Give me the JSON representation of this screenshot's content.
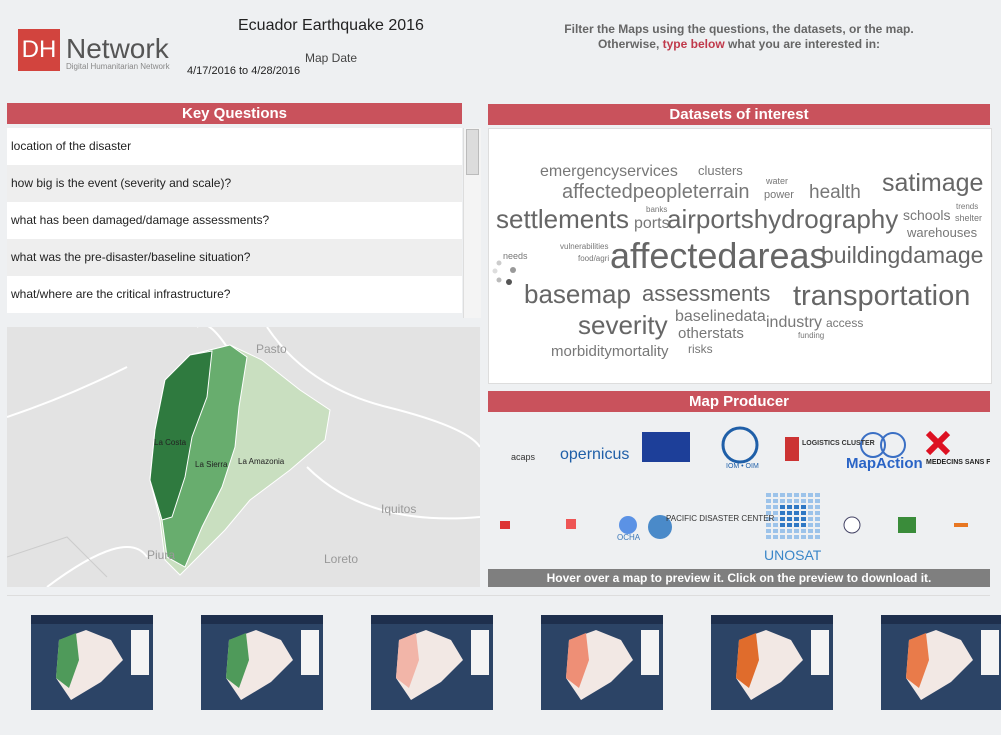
{
  "header": {
    "logo_mark": "DH",
    "logo": "Network",
    "logo_subtitle": "Digital Humanitarian Network",
    "title": "Ecuador Earthquake 2016",
    "map_date_label": "Map Date",
    "map_date": "4/17/2016 to 4/28/2016",
    "filter_line1": "Filter the Maps using the questions, the datasets, or the map.",
    "filter_line2_start": "Otherwise,",
    "filter_link": "type below",
    "filter_line2_end": "what you are interested in:"
  },
  "key_questions": {
    "title": "Key Questions",
    "items": [
      "location of the disaster",
      "how big is the event (severity and scale)?",
      "what has been damaged/damage assessments?",
      "what was the pre-disaster/baseline situation?",
      "what/where are the critical infrastructure?"
    ]
  },
  "map": {
    "labels": [
      "Pasto",
      "La Costa",
      "La Sierra",
      "La Amazonia",
      "Iquitos",
      "Piura",
      "Loreto"
    ]
  },
  "datasets": {
    "title": "Datasets of interest",
    "words": [
      "emergencyservices",
      "clusters",
      "water",
      "power",
      "affectedpeopleterrain",
      "health",
      "satimage",
      "banks",
      "settlements",
      "ports",
      "airportshydrography",
      "schools",
      "trends",
      "shelter",
      "warehouses",
      "vulnerabilities",
      "needs",
      "food/agri",
      "affectedareas",
      "buildingdamage",
      "basemap",
      "assessments",
      "transportation",
      "severity",
      "baselinedata",
      "industry",
      "access",
      "funding",
      "otherstats",
      "morbiditymortality",
      "risks"
    ]
  },
  "map_producer": {
    "title": "Map Producer",
    "logos": [
      "acaps",
      "opernicus",
      "IOM • OIM",
      "LOGISTICS CLUSTER",
      "MapAction",
      "MEDECINS SANS FRONTIER",
      "OCHA",
      "PACIFIC DISASTER CENTER",
      "UNOSAT"
    ]
  },
  "preview_hint": "Hover over a map to preview it. Click on the preview to download it."
}
